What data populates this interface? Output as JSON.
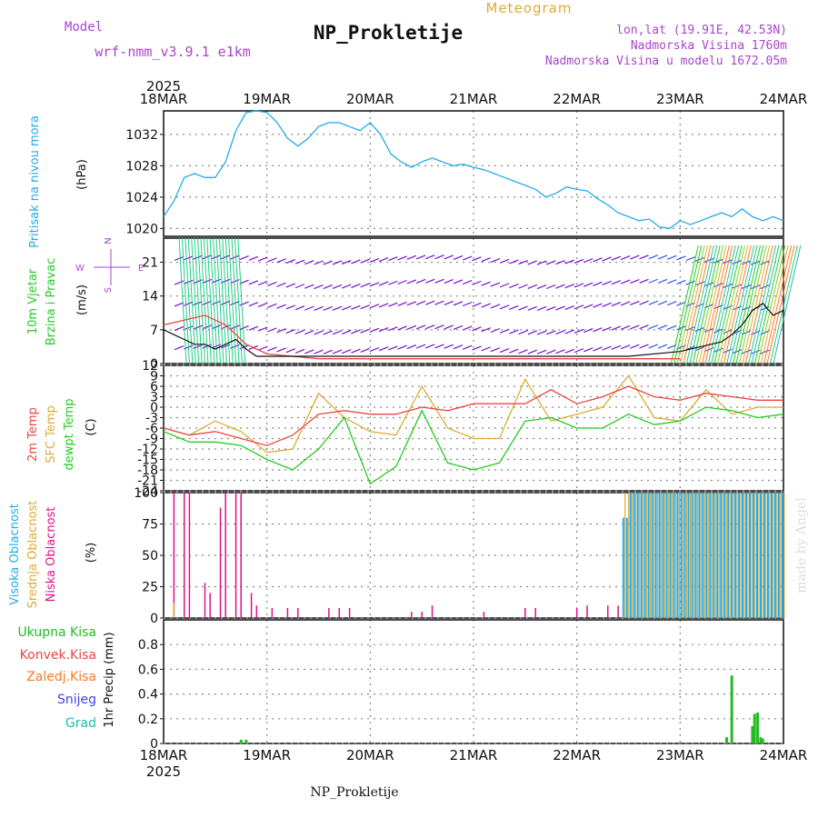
{
  "header": {
    "meteogram_label": "Meteogram",
    "model_label": "Model",
    "model_name": "wrf-nmm_v3.9.1  e1km",
    "station_title": "NP_Prokletije",
    "lonlat": "lon,lat (19.91E, 42.53N)",
    "elevation": "Nadmorska Visina 1760m",
    "model_elevation": "Nadmorska Visina u modelu 1672.05m",
    "year": "2025",
    "footer_station": "NP_Prokletije",
    "credit": "made by Angel"
  },
  "colors": {
    "pressure": "#22aaee",
    "temp2m": "#ee4444",
    "sfc_temp": "#ddaa33",
    "dewpoint": "#22cc22",
    "high_cloud": "#22aaee",
    "mid_cloud": "#ddaa33",
    "low_cloud": "#dd1188",
    "total_precip": "#22bb22",
    "conv_precip": "#ee4444",
    "freezing_precip": "#ff7722",
    "snow": "#4444dd",
    "hail": "#22bbaa",
    "wind_label": "#22cc22",
    "wind_arrows": "#7711cc",
    "purple_text": "#aa44cc"
  },
  "chart_data": [
    {
      "type": "line",
      "panel": "pressure",
      "title": "Pritisak na nivou mora",
      "ylabel": "(hPa)",
      "x_ticks": [
        "18MAR",
        "19MAR",
        "20MAR",
        "21MAR",
        "22MAR",
        "23MAR",
        "24MAR"
      ],
      "ylim": [
        1019,
        1035
      ],
      "y_ticks": [
        "1020",
        "1024",
        "1028",
        "1032"
      ],
      "grid": true,
      "series": [
        {
          "name": "Pritisak na nivou mora",
          "x": [
            0,
            0.1,
            0.2,
            0.3,
            0.4,
            0.5,
            0.6,
            0.7,
            0.8,
            0.9,
            1.0,
            1.1,
            1.2,
            1.3,
            1.4,
            1.5,
            1.6,
            1.7,
            1.8,
            1.9,
            2.0,
            2.1,
            2.2,
            2.3,
            2.4,
            2.5,
            2.6,
            2.7,
            2.8,
            2.9,
            3.0,
            3.1,
            3.2,
            3.3,
            3.4,
            3.5,
            3.6,
            3.7,
            3.8,
            3.9,
            4.0,
            4.1,
            4.2,
            4.3,
            4.4,
            4.5,
            4.6,
            4.7,
            4.8,
            4.9,
            5.0,
            5.1,
            5.2,
            5.3,
            5.4,
            5.5,
            5.6,
            5.7,
            5.8,
            5.9,
            6.0
          ],
          "y": [
            1021.5,
            1023.5,
            1026.5,
            1027.0,
            1026.5,
            1026.5,
            1028.5,
            1032.5,
            1034.8,
            1035.0,
            1034.8,
            1033.5,
            1031.5,
            1030.5,
            1031.5,
            1033.0,
            1033.5,
            1033.5,
            1033.0,
            1032.5,
            1033.5,
            1032.0,
            1029.5,
            1028.5,
            1027.8,
            1028.5,
            1029.0,
            1028.5,
            1028.0,
            1028.2,
            1027.8,
            1027.5,
            1027.0,
            1026.5,
            1026.0,
            1025.5,
            1025.0,
            1024.0,
            1024.5,
            1025.3,
            1025.0,
            1024.8,
            1023.8,
            1023.0,
            1022.0,
            1021.5,
            1021.0,
            1021.2,
            1020.2,
            1020.0,
            1021.0,
            1020.5,
            1021.0,
            1021.5,
            1022.0,
            1021.5,
            1022.5,
            1021.5,
            1021.0,
            1021.5,
            1021.0
          ]
        }
      ]
    },
    {
      "type": "line",
      "panel": "wind",
      "title": "10m Vjetar Brzina i Pravac",
      "ylabel": "(m/s)",
      "ylim": [
        0,
        26
      ],
      "y_ticks": [
        "0",
        "7",
        "14",
        "21"
      ],
      "compass": {
        "north": "N",
        "west": "W",
        "east": "E",
        "south": "S"
      },
      "series": [
        {
          "name": "wind speed",
          "x": [
            0,
            0.1,
            0.2,
            0.3,
            0.4,
            0.5,
            0.6,
            0.7,
            0.8,
            0.9,
            1.0,
            1.5,
            2.0,
            2.5,
            3.0,
            3.5,
            4.0,
            4.5,
            5.0,
            5.2,
            5.4,
            5.5,
            5.6,
            5.7,
            5.8,
            5.9,
            6.0
          ],
          "y": [
            7,
            6,
            5,
            4,
            4,
            3,
            4,
            5,
            3,
            1.5,
            1.5,
            1.5,
            1.5,
            1.5,
            1.5,
            1.5,
            1.5,
            1.5,
            2.5,
            3.5,
            4.5,
            6,
            8,
            11,
            12.5,
            10,
            11
          ]
        },
        {
          "name": "gust",
          "x": [
            0,
            0.2,
            0.4,
            0.5,
            0.6,
            0.7,
            0.8,
            0.9,
            1.0,
            1.5,
            2.0,
            2.5,
            3.0,
            3.5,
            4.0,
            4.5,
            5.0
          ],
          "y": [
            8,
            9,
            10,
            9,
            8,
            6,
            4,
            3,
            2,
            1,
            1,
            1,
            1,
            1,
            1,
            1,
            1
          ]
        }
      ]
    },
    {
      "type": "line",
      "panel": "temperature",
      "ylabel": "(C)",
      "ylim": [
        -24,
        12
      ],
      "y_ticks": [
        "12",
        "9",
        "6",
        "3",
        "0",
        "-3",
        "-6",
        "-9",
        "-12",
        "-15",
        "-18",
        "-21",
        "-24"
      ],
      "series": [
        {
          "name": "2m Temp",
          "x": [
            0,
            0.25,
            0.5,
            0.75,
            1.0,
            1.25,
            1.5,
            1.75,
            2.0,
            2.25,
            2.5,
            2.75,
            3.0,
            3.25,
            3.5,
            3.75,
            4.0,
            4.25,
            4.5,
            4.75,
            5.0,
            5.25,
            5.5,
            5.75,
            6.0
          ],
          "y": [
            -6,
            -8,
            -7,
            -9,
            -11,
            -8,
            -2,
            -1,
            -2,
            -2,
            0,
            -1,
            1,
            1,
            1,
            5,
            1,
            3,
            6,
            3,
            2,
            4,
            3,
            2,
            2
          ]
        },
        {
          "name": "SFC Temp",
          "x": [
            0,
            0.25,
            0.5,
            0.75,
            1.0,
            1.25,
            1.5,
            1.75,
            2.0,
            2.25,
            2.5,
            2.75,
            3.0,
            3.25,
            3.5,
            3.75,
            4.0,
            4.25,
            4.5,
            4.75,
            5.0,
            5.25,
            5.5,
            5.75,
            6.0
          ],
          "y": [
            -6,
            -8,
            -4,
            -7,
            -13,
            -12,
            4,
            -3,
            -7,
            -8,
            6,
            -6,
            -9,
            -9,
            8,
            -4,
            -2,
            0,
            9,
            -3,
            -4,
            5,
            -2,
            0,
            0
          ]
        },
        {
          "name": "dewpt Temp",
          "x": [
            0,
            0.25,
            0.5,
            0.75,
            1.0,
            1.25,
            1.5,
            1.75,
            2.0,
            2.25,
            2.5,
            2.75,
            3.0,
            3.25,
            3.5,
            3.75,
            4.0,
            4.25,
            4.5,
            4.75,
            5.0,
            5.25,
            5.5,
            5.75,
            6.0
          ],
          "y": [
            -7,
            -10,
            -10,
            -11,
            -15,
            -18,
            -12,
            -3,
            -22,
            -17,
            -1,
            -16,
            -18,
            -16,
            -4,
            -3,
            -6,
            -6,
            -2,
            -5,
            -4,
            0,
            -1,
            -3,
            -2
          ]
        }
      ]
    },
    {
      "type": "bar",
      "panel": "cloud",
      "ylabel": "(%)",
      "ylim": [
        0,
        100
      ],
      "y_ticks": [
        "0",
        "25",
        "50",
        "75",
        "100"
      ],
      "series": [
        {
          "name": "Visoka Oblacnost",
          "x": [
            4.45,
            5.0,
            6.0
          ],
          "values": [
            80,
            100,
            100
          ]
        },
        {
          "name": "Srednja Oblacnost",
          "x": [
            0.1,
            4.5,
            6.0
          ],
          "values": [
            12,
            100,
            100
          ]
        },
        {
          "name": "Niska Oblacnost",
          "x": [
            0.1,
            0.2,
            0.25,
            0.4,
            0.45,
            0.55,
            0.6,
            0.7,
            0.75,
            0.85,
            0.9,
            1.05,
            1.2,
            1.3,
            1.6,
            1.7,
            1.8,
            2.4,
            2.5,
            2.6,
            3.1,
            3.5,
            3.6,
            4.0,
            4.1,
            4.3,
            4.4
          ],
          "values": [
            100,
            100,
            100,
            28,
            20,
            88,
            100,
            100,
            100,
            20,
            10,
            8,
            8,
            8,
            8,
            8,
            8,
            5,
            5,
            10,
            5,
            8,
            8,
            8,
            10,
            10,
            10
          ]
        }
      ]
    },
    {
      "type": "bar",
      "panel": "precip",
      "ylabel": "1hr Precip (mm)",
      "ylim": [
        0,
        1.0
      ],
      "y_ticks": [
        "0",
        "0.2",
        "0.4",
        "0.6",
        "0.8"
      ],
      "series": [
        {
          "name": "Ukupna Kisa",
          "x": [
            0.75,
            0.8,
            5.45,
            5.5,
            5.7,
            5.72,
            5.75,
            5.78,
            5.8
          ],
          "values": [
            0.03,
            0.03,
            0.05,
            0.55,
            0.14,
            0.24,
            0.25,
            0.05,
            0.04
          ]
        },
        {
          "name": "Konvek.Kisa",
          "x": [],
          "values": []
        },
        {
          "name": "Zaledj.Kisa",
          "x": [],
          "values": []
        },
        {
          "name": "Snijeg",
          "x": [],
          "values": []
        },
        {
          "name": "Grad",
          "x": [],
          "values": []
        }
      ]
    }
  ]
}
